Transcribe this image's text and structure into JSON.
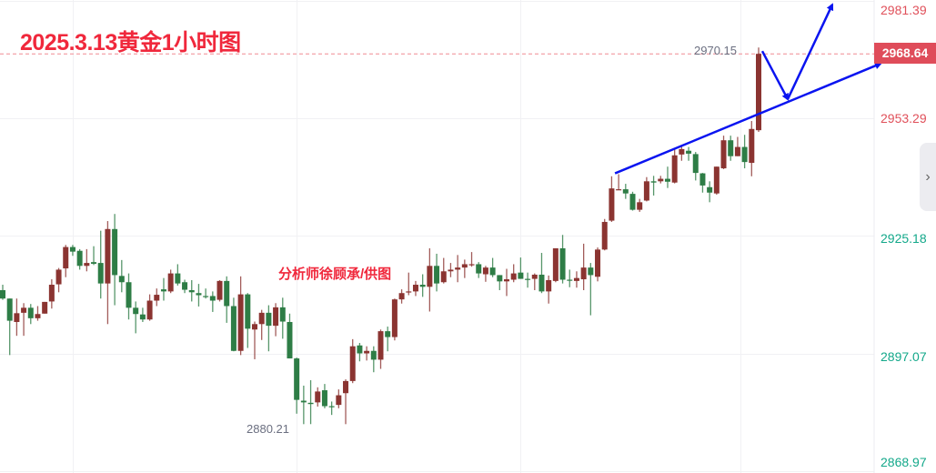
{
  "title": "2025.3.13黄金1小时图",
  "watermark": "分析师徐顾承/供图",
  "current_price": "2968.64",
  "side_toggle_icon": "chevron-right-icon",
  "colors": {
    "up": "#8b3431",
    "down": "#2e7d46",
    "annotation": "#0a14f0",
    "title": "#f0283c",
    "current_price_bg": "#df4c5a",
    "axis_up": "#e0505a",
    "axis_down": "#13a88a"
  },
  "chart_data": {
    "type": "candlestick",
    "title": "2025.3.13黄金1小时图",
    "y_ticks": [
      "2981.39",
      "2953.29",
      "2925.18",
      "2897.07",
      "2868.97"
    ],
    "ylim": [
      2868.97,
      2981.39
    ],
    "grid": true,
    "high_label": "2970.15",
    "low_label": "2880.21",
    "current_price": 2968.64,
    "candle_format": [
      "open",
      "high",
      "low",
      "close"
    ],
    "candles": [
      [
        2912.2,
        2913.5,
        2909.9,
        2910.2
      ],
      [
        2910.2,
        2910.2,
        2896.7,
        2904.9
      ],
      [
        2904.6,
        2910.2,
        2901.3,
        2906.7
      ],
      [
        2906.8,
        2909.1,
        2901.3,
        2908.0
      ],
      [
        2908.0,
        2908.9,
        2904.1,
        2905.5
      ],
      [
        2905.5,
        2908.4,
        2904.9,
        2906.5
      ],
      [
        2906.6,
        2909.4,
        2906.6,
        2909.4
      ],
      [
        2909.5,
        2914.8,
        2907.8,
        2913.5
      ],
      [
        2913.6,
        2917.5,
        2911.7,
        2917.1
      ],
      [
        2917.4,
        2923.0,
        2915.3,
        2922.5
      ],
      [
        2922.5,
        2923.0,
        2920.4,
        2921.4
      ],
      [
        2921.6,
        2922.0,
        2917.1,
        2918.0
      ],
      [
        2918.0,
        2922.0,
        2916.7,
        2918.7
      ],
      [
        2918.9,
        2922.7,
        2918.2,
        2918.5
      ],
      [
        2918.7,
        2926.4,
        2910.2,
        2913.8
      ],
      [
        2913.8,
        2928.7,
        2904.1,
        2926.8
      ],
      [
        2926.8,
        2930.4,
        2908.6,
        2915.8
      ],
      [
        2915.6,
        2919.4,
        2911.7,
        2914.1
      ],
      [
        2914.1,
        2916.2,
        2905.2,
        2908.0
      ],
      [
        2908.0,
        2909.5,
        2901.9,
        2906.5
      ],
      [
        2906.4,
        2908.0,
        2904.6,
        2905.2
      ],
      [
        2905.2,
        2911.2,
        2904.9,
        2909.7
      ],
      [
        2909.7,
        2912.6,
        2908.4,
        2911.1
      ],
      [
        2912.4,
        2915.1,
        2909.7,
        2911.9
      ],
      [
        2911.9,
        2917.1,
        2911.5,
        2916.2
      ],
      [
        2916.2,
        2918.4,
        2913.3,
        2913.8
      ],
      [
        2914.1,
        2914.7,
        2911.5,
        2912.3
      ],
      [
        2912.2,
        2914.6,
        2909.5,
        2911.7
      ],
      [
        2911.5,
        2913.7,
        2908.3,
        2911.0
      ],
      [
        2910.8,
        2912.6,
        2910.2,
        2910.6
      ],
      [
        2910.8,
        2911.9,
        2907.0,
        2909.7
      ],
      [
        2909.9,
        2914.6,
        2909.5,
        2914.4
      ],
      [
        2914.4,
        2915.5,
        2904.4,
        2908.4
      ],
      [
        2908.4,
        2910.4,
        2897.6,
        2897.7
      ],
      [
        2897.7,
        2915.5,
        2896.7,
        2911.2
      ],
      [
        2911.2,
        2911.5,
        2898.4,
        2903.0
      ],
      [
        2902.8,
        2904.7,
        2895.7,
        2904.1
      ],
      [
        2904.1,
        2907.5,
        2900.3,
        2906.8
      ],
      [
        2906.8,
        2908.6,
        2897.6,
        2903.7
      ],
      [
        2903.7,
        2909.1,
        2901.2,
        2908.1
      ],
      [
        2908.1,
        2910.4,
        2900.6,
        2904.7
      ],
      [
        2904.6,
        2906.6,
        2895.9,
        2895.9
      ],
      [
        2895.9,
        2896.1,
        2882.7,
        2886.0
      ],
      [
        2885.8,
        2889.4,
        2880.2,
        2885.4
      ],
      [
        2885.3,
        2890.7,
        2880.21,
        2885.0
      ],
      [
        2885.4,
        2889.0,
        2884.4,
        2888.0
      ],
      [
        2888.3,
        2889.8,
        2884.0,
        2884.5
      ],
      [
        2884.5,
        2885.6,
        2882.4,
        2884.4
      ],
      [
        2884.8,
        2888.5,
        2884.0,
        2887.1
      ],
      [
        2887.6,
        2890.9,
        2880.2,
        2890.5
      ],
      [
        2890.5,
        2900.5,
        2890.0,
        2898.8
      ],
      [
        2899.0,
        2899.6,
        2895.2,
        2897.1
      ],
      [
        2897.1,
        2898.8,
        2895.4,
        2897.7
      ],
      [
        2897.7,
        2898.8,
        2892.6,
        2895.6
      ],
      [
        2895.6,
        2902.8,
        2893.4,
        2902.4
      ],
      [
        2902.4,
        2903.5,
        2897.6,
        2901.0
      ],
      [
        2901.0,
        2910.2,
        2900.2,
        2910.0
      ],
      [
        2910.0,
        2912.4,
        2909.0,
        2911.5
      ],
      [
        2911.7,
        2916.4,
        2911.0,
        2911.9
      ],
      [
        2911.9,
        2914.4,
        2910.8,
        2913.5
      ],
      [
        2913.5,
        2916.0,
        2910.6,
        2913.0
      ],
      [
        2913.0,
        2922.2,
        2907.1,
        2918.0
      ],
      [
        2918.0,
        2920.9,
        2911.9,
        2913.8
      ],
      [
        2914.1,
        2919.9,
        2913.8,
        2916.7
      ],
      [
        2916.7,
        2918.7,
        2915.3,
        2917.1
      ],
      [
        2917.1,
        2920.6,
        2914.1,
        2917.6
      ],
      [
        2917.6,
        2919.5,
        2915.1,
        2918.4
      ],
      [
        2918.2,
        2921.3,
        2917.8,
        2918.4
      ],
      [
        2918.4,
        2918.9,
        2915.1,
        2916.2
      ],
      [
        2916.0,
        2918.0,
        2914.2,
        2917.6
      ],
      [
        2917.6,
        2919.9,
        2915.3,
        2915.8
      ],
      [
        2915.8,
        2915.8,
        2912.2,
        2914.3
      ],
      [
        2914.3,
        2917.3,
        2910.8,
        2914.8
      ],
      [
        2914.7,
        2918.4,
        2914.1,
        2916.2
      ],
      [
        2916.4,
        2920.0,
        2914.9,
        2914.9
      ],
      [
        2914.9,
        2916.4,
        2912.8,
        2914.8
      ],
      [
        2914.9,
        2916.2,
        2912.2,
        2915.9
      ],
      [
        2915.9,
        2921.1,
        2911.5,
        2911.9
      ],
      [
        2911.9,
        2915.7,
        2909.0,
        2914.6
      ],
      [
        2914.4,
        2922.2,
        2914.1,
        2922.2
      ],
      [
        2922.2,
        2925.4,
        2913.8,
        2914.7
      ],
      [
        2914.7,
        2917.1,
        2912.9,
        2914.5
      ],
      [
        2914.4,
        2916.7,
        2912.8,
        2915.1
      ],
      [
        2914.8,
        2923.3,
        2912.2,
        2917.6
      ],
      [
        2917.6,
        2918.7,
        2906.2,
        2915.8
      ],
      [
        2915.4,
        2922.4,
        2914.3,
        2921.9
      ],
      [
        2921.9,
        2929.2,
        2921.7,
        2928.5
      ],
      [
        2928.8,
        2939.4,
        2928.5,
        2936.5
      ],
      [
        2936.1,
        2939.9,
        2936.1,
        2936.3
      ],
      [
        2936.3,
        2937.6,
        2934.0,
        2935.3
      ],
      [
        2935.2,
        2935.7,
        2931.2,
        2931.4
      ],
      [
        2931.4,
        2934.0,
        2930.9,
        2933.2
      ],
      [
        2933.6,
        2939.2,
        2933.4,
        2938.2
      ],
      [
        2938.2,
        2939.5,
        2934.8,
        2937.9
      ],
      [
        2938.2,
        2939.5,
        2937.7,
        2938.8
      ],
      [
        2938.8,
        2941.7,
        2936.6,
        2938.1
      ],
      [
        2937.9,
        2946.0,
        2937.7,
        2944.4
      ],
      [
        2944.6,
        2946.9,
        2943.1,
        2945.9
      ],
      [
        2945.5,
        2946.4,
        2943.1,
        2944.8
      ],
      [
        2944.7,
        2945.2,
        2938.4,
        2940.2
      ],
      [
        2940.1,
        2940.2,
        2935.5,
        2937.2
      ],
      [
        2936.8,
        2938.2,
        2933.2,
        2935.5
      ],
      [
        2935.3,
        2941.7,
        2935.0,
        2941.7
      ],
      [
        2941.3,
        2949.1,
        2941.1,
        2948.0
      ],
      [
        2948.0,
        2949.1,
        2943.1,
        2944.2
      ],
      [
        2944.2,
        2948.8,
        2944.2,
        2946.4
      ],
      [
        2946.4,
        2949.3,
        2941.3,
        2942.8
      ],
      [
        2942.6,
        2952.6,
        2939.4,
        2950.7
      ],
      [
        2950.4,
        2970.15,
        2950.0,
        2968.64
      ]
    ],
    "annotations": [
      {
        "type": "trendline-arrow",
        "from": [
          88,
          2940.1
        ],
        "to": [
          "beyond-last",
          2966.3
        ]
      },
      {
        "type": "arrow-down",
        "from": [
          108,
          2969.3
        ],
        "to": [
          "future",
          2957.8
        ]
      },
      {
        "type": "arrow-up",
        "from": [
          "future",
          2957.8
        ],
        "to": [
          "future",
          2980.4
        ]
      }
    ]
  }
}
